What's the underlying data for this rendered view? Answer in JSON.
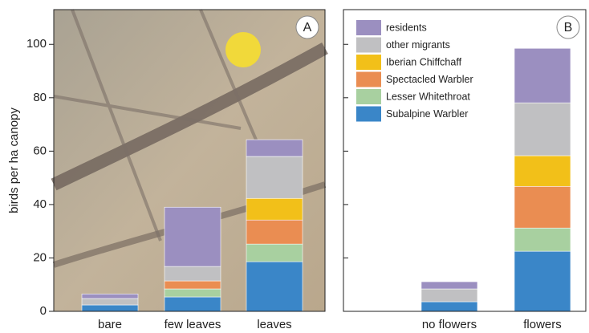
{
  "chart_data": [
    {
      "type": "bar",
      "stacked": true,
      "label": "A",
      "y_label": "birds per ha canopy",
      "categories": [
        "bare",
        "few leaves",
        "leaves"
      ],
      "ylim": [
        0,
        113
      ],
      "yticks": [
        0,
        20,
        40,
        60,
        80,
        100
      ],
      "tick_labels": true,
      "series": [
        {
          "color": "#3a86c8",
          "values": [
            2.4,
            5.4,
            18.6
          ]
        },
        {
          "color": "#a8d0a0",
          "values": [
            0,
            3.0,
            6.6
          ]
        },
        {
          "color": "#ea8d52",
          "values": [
            0,
            3.0,
            9.0
          ]
        },
        {
          "color": "#f2c019",
          "values": [
            0,
            0,
            8.1
          ]
        },
        {
          "color": "#c0c0c2",
          "values": [
            2.4,
            5.4,
            15.7
          ]
        },
        {
          "color": "#9b8fc0",
          "values": [
            1.7,
            22.2,
            6.3
          ]
        }
      ]
    },
    {
      "type": "bar",
      "stacked": true,
      "label": "B",
      "legend": "upper left",
      "categories": [
        "no flowers",
        "flowers"
      ],
      "ylim": [
        0,
        113
      ],
      "yticks": [
        0,
        20,
        40,
        60,
        80,
        100
      ],
      "tick_labels": false,
      "series": [
        {
          "name": "Subalpine Warbler",
          "color": "#3a86c8",
          "values": [
            3.6,
            22.5
          ]
        },
        {
          "name": "Lesser Whitethroat",
          "color": "#a8d0a0",
          "values": [
            0,
            8.7
          ]
        },
        {
          "name": "Spectacled Warbler",
          "color": "#ea8d52",
          "values": [
            0,
            15.6
          ]
        },
        {
          "name": "Iberian Chiffchaff",
          "color": "#f2c019",
          "values": [
            0,
            11.5
          ]
        },
        {
          "name": "other migrants",
          "color": "#c0c0c2",
          "values": [
            4.8,
            19.8
          ]
        },
        {
          "name": "residents",
          "color": "#9b8fc0",
          "values": [
            2.7,
            20.4
          ]
        }
      ]
    }
  ]
}
